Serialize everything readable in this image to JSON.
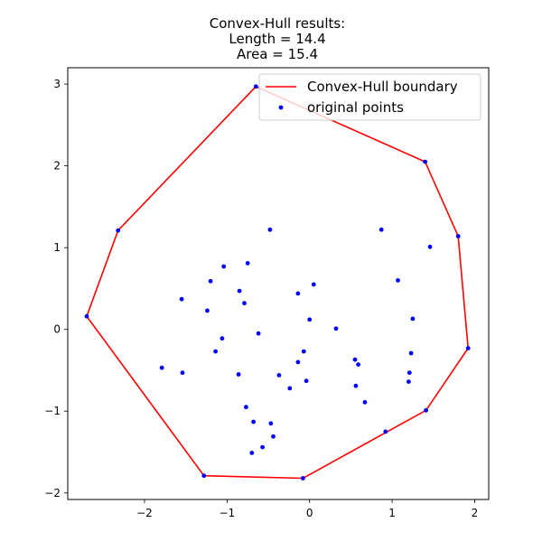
{
  "chart_data": {
    "type": "scatter",
    "title": [
      "Convex-Hull results:",
      "Length = 14.4",
      "Area = 15.4"
    ],
    "xlabel": "",
    "ylabel": "",
    "xlim": [
      -2.93,
      2.17
    ],
    "ylim": [
      -2.08,
      3.2
    ],
    "x_ticks": [
      -2,
      -1,
      0,
      1,
      2
    ],
    "y_ticks": [
      -2,
      -1,
      0,
      1,
      2,
      3
    ],
    "x_tick_labels": [
      "−2",
      "−1",
      "0",
      "1",
      "2"
    ],
    "y_tick_labels": [
      "−2",
      "−1",
      "0",
      "1",
      "2",
      "3"
    ],
    "grid": false,
    "legend_position": "top-right",
    "series": [
      {
        "name": "Convex-Hull boundary",
        "kind": "line",
        "color": "#ff0000",
        "x": [
          -0.65,
          1.4,
          1.8,
          1.92,
          1.41,
          -0.08,
          -1.28,
          -2.7,
          -2.32,
          -0.65
        ],
        "y": [
          2.97,
          2.05,
          1.14,
          -0.23,
          -0.99,
          -1.82,
          -1.79,
          0.16,
          1.21,
          2.97
        ]
      },
      {
        "name": "original points",
        "kind": "scatter",
        "color": "#0000ff",
        "x": [
          -0.65,
          1.4,
          1.8,
          1.92,
          1.41,
          -0.08,
          -1.28,
          -2.7,
          -2.32,
          -0.48,
          0.87,
          1.46,
          -1.04,
          -0.75,
          1.07,
          -1.2,
          -0.85,
          -0.79,
          -0.14,
          0.05,
          -1.55,
          -1.24,
          0.0,
          0.32,
          1.25,
          -0.62,
          -1.06,
          -1.14,
          -0.07,
          -0.14,
          1.23,
          0.55,
          0.59,
          -1.79,
          -1.54,
          -0.86,
          -0.37,
          1.21,
          -0.04,
          -0.24,
          0.56,
          1.2,
          0.67,
          -0.77,
          -0.68,
          -0.47,
          0.92,
          -0.44,
          -0.57,
          -0.7
        ],
        "y": [
          2.97,
          2.05,
          1.14,
          -0.23,
          -0.99,
          -1.82,
          -1.79,
          0.16,
          1.21,
          1.22,
          1.22,
          1.01,
          0.77,
          0.81,
          0.6,
          0.59,
          0.47,
          0.32,
          0.44,
          0.55,
          0.37,
          0.23,
          0.12,
          0.01,
          0.13,
          -0.05,
          -0.11,
          -0.27,
          -0.27,
          -0.4,
          -0.29,
          -0.37,
          -0.43,
          -0.47,
          -0.53,
          -0.55,
          -0.56,
          -0.53,
          -0.63,
          -0.72,
          -0.69,
          -0.64,
          -0.89,
          -0.95,
          -1.13,
          -1.15,
          -1.25,
          -1.31,
          -1.44,
          -1.51
        ]
      }
    ]
  }
}
